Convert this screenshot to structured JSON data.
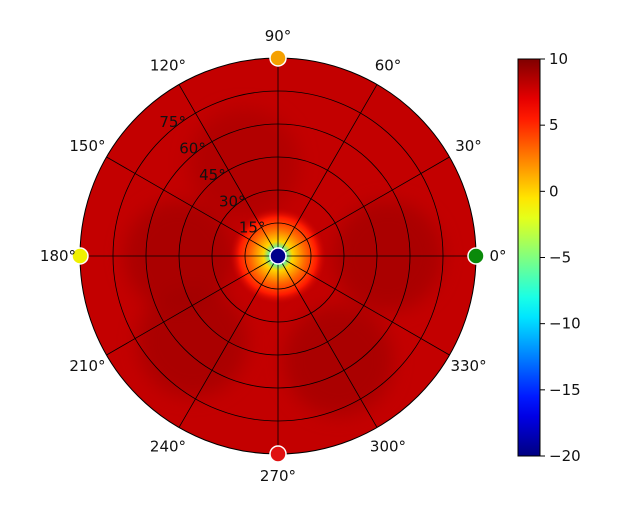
{
  "chart_data": {
    "type": "heatmap",
    "projection": "polar",
    "title": "",
    "angle_ticks": [
      "0°",
      "30°",
      "60°",
      "90°",
      "120°",
      "150°",
      "180°",
      "210°",
      "240°",
      "270°",
      "300°",
      "330°"
    ],
    "angle_tick_values_deg": [
      0,
      30,
      60,
      90,
      120,
      150,
      180,
      210,
      240,
      270,
      300,
      330
    ],
    "radius_ticks": [
      "15°",
      "30°",
      "45°",
      "60°",
      "75°"
    ],
    "radius_tick_values": [
      15,
      30,
      45,
      60,
      75
    ],
    "rlim": [
      0,
      90
    ],
    "grid": true,
    "colormap": "jet",
    "colorbar": {
      "vmin": -20,
      "vmax": 10,
      "ticks": [
        "10",
        "5",
        "0",
        "−5",
        "−10",
        "−15",
        "−20"
      ],
      "tick_values": [
        10,
        5,
        0,
        -5,
        -10,
        -15,
        -20
      ],
      "placement": "right"
    },
    "field_summary": {
      "outer_value": 8,
      "center_value": -20,
      "center_ring_value_at_r10": 3,
      "dark_lobes": [
        {
          "azimuth_deg": 0,
          "radius": 50,
          "value": 9
        },
        {
          "azimuth_deg": 180,
          "radius": 45,
          "value": 9
        },
        {
          "azimuth_deg": 225,
          "radius": 55,
          "value": 9
        },
        {
          "azimuth_deg": 300,
          "radius": 55,
          "value": 9
        },
        {
          "azimuth_deg": 110,
          "radius": 45,
          "value": 8.7
        }
      ]
    },
    "markers": [
      {
        "azimuth_deg": 0,
        "radius": 0,
        "color": "#00008b",
        "name": "center"
      },
      {
        "azimuth_deg": 0,
        "radius": 90,
        "color": "#0a8a0a",
        "name": "east"
      },
      {
        "azimuth_deg": 90,
        "radius": 90,
        "color": "#f5a000",
        "name": "north"
      },
      {
        "azimuth_deg": 180,
        "radius": 90,
        "color": "#f0f000",
        "name": "west"
      },
      {
        "azimuth_deg": 270,
        "radius": 90,
        "color": "#e01010",
        "name": "south"
      }
    ]
  }
}
